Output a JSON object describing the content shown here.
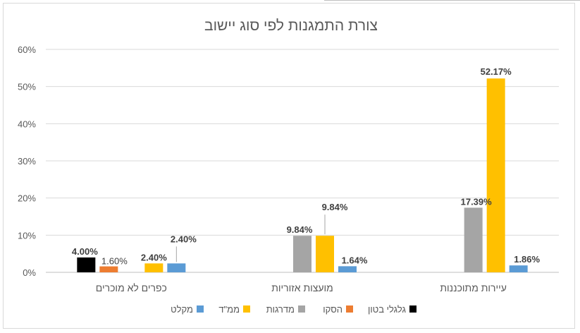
{
  "chart_data": {
    "type": "bar",
    "title": "צורת התמגנות לפי סוג יישוב",
    "xlabel": "",
    "ylabel": "",
    "ylim": [
      0,
      0.6
    ],
    "y_ticks": [
      "0%",
      "10%",
      "20%",
      "30%",
      "40%",
      "50%",
      "60%"
    ],
    "y_tick_values": [
      0,
      0.1,
      0.2,
      0.3,
      0.4,
      0.5,
      0.6
    ],
    "grid": true,
    "legend_position": "bottom",
    "categories": [
      "כפרים לא מוכרים",
      "מועצות אזוריות",
      "עיירות מתוכננות"
    ],
    "series": [
      {
        "name": "גלגלי בטון",
        "color": "#000000",
        "values": [
          0.04,
          null,
          null
        ],
        "labels": [
          "4.00%",
          "",
          ""
        ]
      },
      {
        "name": "הסקו",
        "color": "#ED7D31",
        "values": [
          0.016,
          null,
          null
        ],
        "labels": [
          "1.60%",
          "",
          ""
        ]
      },
      {
        "name": "מדרגות",
        "color": "#A5A5A5",
        "values": [
          null,
          0.0984,
          0.1739
        ],
        "labels": [
          "",
          "9.84%",
          "17.39%"
        ]
      },
      {
        "name": "ממ\"ד",
        "color": "#FFC000",
        "values": [
          0.024,
          0.0984,
          0.5217
        ],
        "labels": [
          "2.40%",
          "9.84%",
          "52.17%"
        ]
      },
      {
        "name": "מקלט",
        "color": "#5B9BD5",
        "values": [
          0.024,
          0.0164,
          0.0186
        ],
        "labels": [
          "2.40%",
          "1.64%",
          "1.86%"
        ]
      }
    ]
  }
}
